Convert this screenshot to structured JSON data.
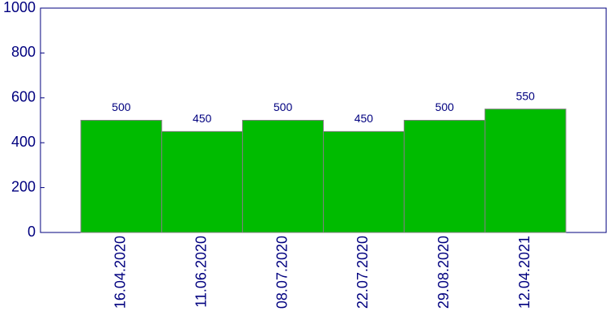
{
  "chart_data": {
    "type": "bar",
    "categories": [
      "16.04.2020",
      "11.06.2020",
      "08.07.2020",
      "22.07.2020",
      "29.08.2020",
      "12.04.2021"
    ],
    "values": [
      500,
      450,
      500,
      450,
      500,
      550
    ],
    "color": "#00bb00",
    "ylim": [
      0,
      1000
    ],
    "yticks": [
      0,
      200,
      400,
      600,
      800,
      1000
    ]
  }
}
